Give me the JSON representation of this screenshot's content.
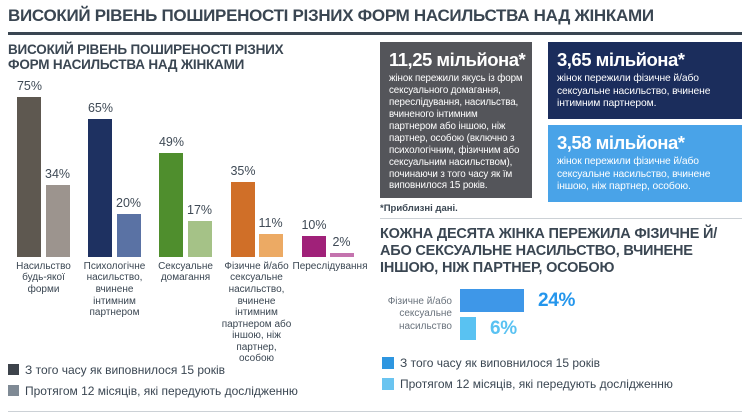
{
  "page_title": "ВИСОКИЙ РІВЕНЬ ПОШИРЕНОСТІ РІЗНИХ ФОРМ НАСИЛЬСТВА НАД ЖІНКАМИ",
  "colors": {
    "heading": "#3a4652",
    "rule": "#3a4652",
    "divider": "#ccd1d6",
    "pair_colors": [
      [
        "#5e5850",
        "#9c948e"
      ],
      [
        "#1e3161",
        "#5a72a4"
      ],
      [
        "#4f8e2d",
        "#a5c287"
      ],
      [
        "#d06f28",
        "#ecaa64"
      ],
      [
        "#a02179",
        "#c473ae"
      ]
    ],
    "legend_left": [
      "#3d434b",
      "#7f8a95"
    ],
    "legend_right": [
      "#2e96e0",
      "#6ac4f0"
    ],
    "hbar_colors": [
      "#3e97e8",
      "#59c2f2"
    ],
    "hvalue_colors": [
      "#2496ec",
      "#59c2f2"
    ],
    "box_gray": "#54555a",
    "box_navy": "#1b2d5c",
    "box_blue": "#49a3e8"
  },
  "chart_data": [
    {
      "type": "bar",
      "orientation": "vertical",
      "title": "ВИСОКИЙ РІВЕНЬ ПОШИРЕНОСТІ РІЗНИХ ФОРМ НАСИЛЬСТВА НАД ЖІНКАМИ",
      "unit": "%",
      "ylim": [
        0,
        85
      ],
      "grid": false,
      "legend_position": "bottom-left",
      "categories": [
        "Насильство будь-якої форми",
        "Психологічне насильство, вчинене інтимним партнером",
        "Сексуальне домагання",
        "Фізичне й/або сексуальне насильство, вчинене інтимним партнером або іншою, ніж партнер, особою",
        "Переслідування"
      ],
      "series": [
        {
          "name": "З того часу як виповнилося 15 років",
          "values": [
            75,
            65,
            49,
            35,
            10
          ]
        },
        {
          "name": "Протягом 12 місяців, які передують дослідженню",
          "values": [
            34,
            20,
            17,
            11,
            2
          ]
        }
      ]
    },
    {
      "type": "bar",
      "orientation": "horizontal",
      "title": "КОЖНА ДЕСЯТА ЖІНКА ПЕРЕЖИЛА ФІЗИЧНЕ Й/АБО СЕКСУАЛЬНЕ НАСИЛЬСТВО, ВЧИНЕНЕ ІНШОЮ, НІЖ ПАРТНЕР, ОСОБОЮ",
      "unit": "%",
      "xlim": [
        0,
        30
      ],
      "grid": false,
      "legend_position": "bottom-left",
      "categories": [
        "Фізичне й/або сексуальне насильство"
      ],
      "series": [
        {
          "name": "З того часу як виповнилося 15 років",
          "values": [
            24
          ]
        },
        {
          "name": "Протягом 12 місяців, які передують дослідженню",
          "values": [
            6
          ]
        }
      ]
    }
  ],
  "stat_boxes": [
    {
      "number": "11,25 мільйона*",
      "body": "жінок пережили якусь із форм сексуального домагання, переслідування, насильства, вчиненого інтимним партнером або іншою, ніж партнер, особою (включно з психологічним, фізичним або сексуальним насильством), починаючи з того часу як їм виповнилося 15 років."
    },
    {
      "number": "3,65 мільйона*",
      "body": "жінок пережили фізичне й/або сексуальне насильство, вчинене інтимним партнером."
    },
    {
      "number": "3,58 мільйона*",
      "body": "жінок пережили фізичне й/або сексуальне насильство, вчинене іншою, ніж партнер, особою."
    }
  ],
  "footnote": "*Приблизні дані."
}
